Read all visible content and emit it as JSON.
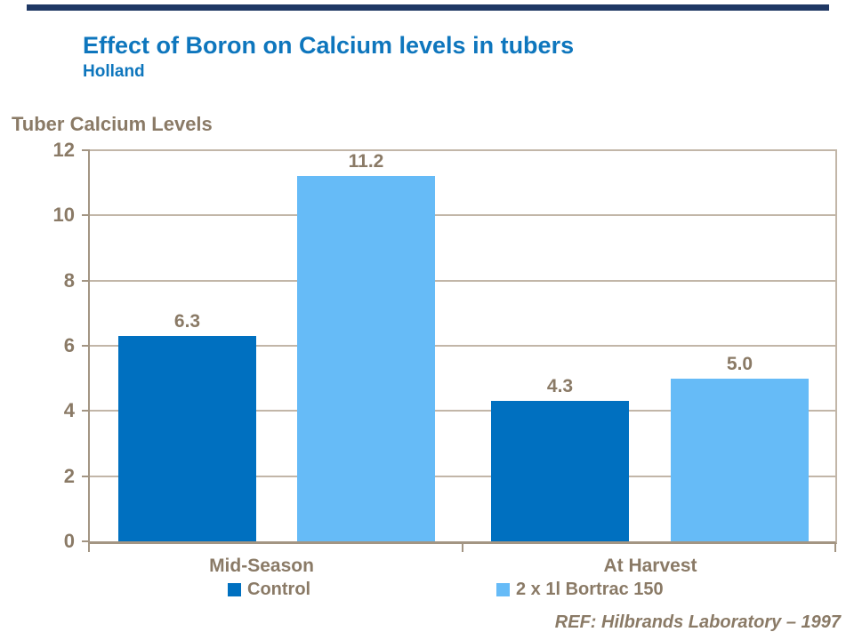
{
  "slide": {
    "title": "Effect of Boron on Calcium levels in tubers",
    "subtitle": "Holland",
    "reference": "REF: Hilbrands Laboratory – 1997"
  },
  "colors": {
    "top_bar_navy": "#1F3864",
    "title_blue": "#0E76BD",
    "text_taupe": "#8A7A66",
    "axis_line": "#A39583",
    "gridline": "#C2B6A8",
    "control_blue": "#0070C0",
    "bortrac_blue": "#66BBF7"
  },
  "chart_data": {
    "type": "bar",
    "title": "Tuber Calcium Levels",
    "xlabel": "",
    "ylabel": "Tuber Calcium Levels",
    "categories": [
      "Mid-Season",
      "At Harvest"
    ],
    "series": [
      {
        "name": "Control",
        "values": [
          6.3,
          4.3
        ],
        "labels": [
          "6.3",
          "4.3"
        ],
        "color": "#0070C0"
      },
      {
        "name": "2 x 1l Bortrac 150",
        "values": [
          11.2,
          5.0
        ],
        "labels": [
          "11.2",
          "5.0"
        ],
        "color": "#66BBF7"
      }
    ],
    "ylim": [
      0,
      12
    ],
    "y_ticks": [
      0,
      2,
      4,
      6,
      8,
      10,
      12
    ],
    "grid": true,
    "legend_position": "bottom"
  }
}
